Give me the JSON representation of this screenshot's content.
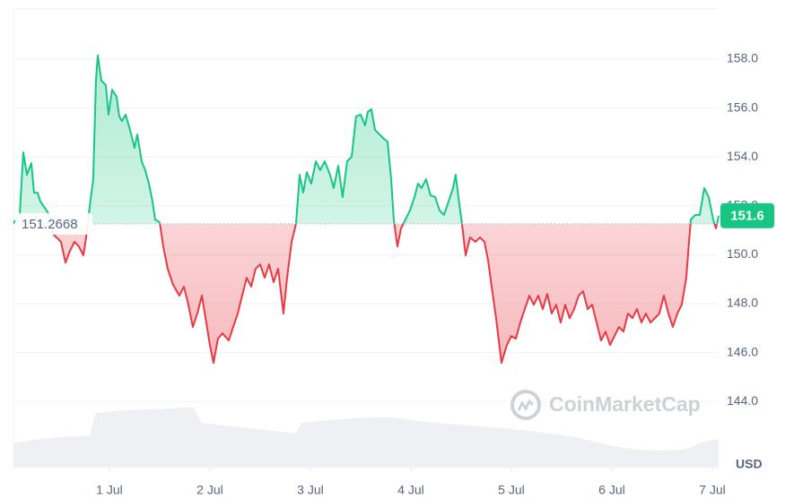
{
  "chart_data": {
    "type": "line",
    "x": [
      0.045,
      0.107,
      0.143,
      0.179,
      0.223,
      0.25,
      0.286,
      0.313,
      0.357,
      0.402,
      0.446,
      0.518,
      0.563,
      0.607,
      0.652,
      0.696,
      0.741,
      0.768,
      0.804,
      0.839,
      0.866,
      0.884,
      0.92,
      0.964,
      0.991,
      1.027,
      1.071,
      1.098,
      1.125,
      1.161,
      1.205,
      1.25,
      1.277,
      1.321,
      1.357,
      1.393,
      1.429,
      1.455,
      1.5,
      1.536,
      1.58,
      1.634,
      1.696,
      1.741,
      1.786,
      1.83,
      1.875,
      1.92,
      1.964,
      2.0,
      2.036,
      2.08,
      2.125,
      2.188,
      2.232,
      2.277,
      2.321,
      2.366,
      2.411,
      2.455,
      2.5,
      2.545,
      2.589,
      2.634,
      2.679,
      2.732,
      2.768,
      2.813,
      2.857,
      2.893,
      2.929,
      2.964,
      3.009,
      3.054,
      3.098,
      3.143,
      3.196,
      3.232,
      3.277,
      3.321,
      3.366,
      3.411,
      3.455,
      3.5,
      3.545,
      3.571,
      3.607,
      3.643,
      3.688,
      3.732,
      3.768,
      3.804,
      3.83,
      3.866,
      3.902,
      3.946,
      3.991,
      4.036,
      4.071,
      4.107,
      4.152,
      4.196,
      4.241,
      4.286,
      4.33,
      4.375,
      4.42,
      4.446,
      4.473,
      4.509,
      4.545,
      4.589,
      4.643,
      4.688,
      4.732,
      4.768,
      4.804,
      4.848,
      4.902,
      4.955,
      5.0,
      5.045,
      5.089,
      5.134,
      5.179,
      5.223,
      5.268,
      5.313,
      5.357,
      5.402,
      5.446,
      5.491,
      5.536,
      5.58,
      5.625,
      5.67,
      5.714,
      5.759,
      5.804,
      5.848,
      5.893,
      5.938,
      5.982,
      6.027,
      6.071,
      6.116,
      6.161,
      6.205,
      6.25,
      6.295,
      6.339,
      6.384,
      6.429,
      6.473,
      6.518,
      6.563,
      6.607,
      6.652,
      6.696,
      6.741,
      6.768,
      6.786,
      6.83,
      6.875,
      6.92,
      6.964,
      7.009,
      7.036,
      7.063
    ],
    "values": [
      151.3,
      151.63,
      154.19,
      153.27,
      153.75,
      152.54,
      152.54,
      152.18,
      151.92,
      151.63,
      150.82,
      150.53,
      149.68,
      150.16,
      150.53,
      150.34,
      149.98,
      150.71,
      151.99,
      153.09,
      157.12,
      158.15,
      157.12,
      156.94,
      155.73,
      156.75,
      156.46,
      155.66,
      155.47,
      155.73,
      155.11,
      154.37,
      154.92,
      153.82,
      153.46,
      152.91,
      152.18,
      151.44,
      151.33,
      150.34,
      149.43,
      148.77,
      148.33,
      148.7,
      147.96,
      147.05,
      147.6,
      148.33,
      147.23,
      146.31,
      145.58,
      146.57,
      146.79,
      146.5,
      147.05,
      147.6,
      148.33,
      149.06,
      148.7,
      149.43,
      149.61,
      149.06,
      149.61,
      148.88,
      149.43,
      147.6,
      149.06,
      150.53,
      151.26,
      153.27,
      152.54,
      153.38,
      152.91,
      153.82,
      153.46,
      153.82,
      153.27,
      152.73,
      153.64,
      152.36,
      153.82,
      154.01,
      155.66,
      155.73,
      155.29,
      155.84,
      155.95,
      155.11,
      154.92,
      154.74,
      154.63,
      153.09,
      151.44,
      150.34,
      151.08,
      151.44,
      151.81,
      152.36,
      152.91,
      152.73,
      153.09,
      152.43,
      152.36,
      151.81,
      151.63,
      152.18,
      152.73,
      153.27,
      152.36,
      151.26,
      149.98,
      150.71,
      150.53,
      150.71,
      150.53,
      149.79,
      148.7,
      147.41,
      145.58,
      146.31,
      146.68,
      146.57,
      147.23,
      147.78,
      148.33,
      147.96,
      148.33,
      147.78,
      148.4,
      147.6,
      147.96,
      147.23,
      147.96,
      147.41,
      147.78,
      148.33,
      148.51,
      147.78,
      147.96,
      147.23,
      146.5,
      146.86,
      146.31,
      146.68,
      147.05,
      146.86,
      147.6,
      147.41,
      147.78,
      147.23,
      147.6,
      147.23,
      147.41,
      147.6,
      148.33,
      147.6,
      147.05,
      147.6,
      147.96,
      149.06,
      150.53,
      151.44,
      151.63,
      151.63,
      152.73,
      152.36,
      151.44,
      151.08,
      151.6
    ],
    "baseline": 151.2668,
    "up_color": "#16c784",
    "down_color": "#ea3943",
    "xlim": [
      0.045,
      7.063
    ],
    "ylim": [
      141.3,
      160.05
    ],
    "xticks": [
      {
        "value": 1,
        "label": "1 Jul"
      },
      {
        "value": 2,
        "label": "2 Jul"
      },
      {
        "value": 3,
        "label": "3 Jul"
      },
      {
        "value": 4,
        "label": "4 Jul"
      },
      {
        "value": 5,
        "label": "5 Jul"
      },
      {
        "value": 6,
        "label": "6 Jul"
      },
      {
        "value": 7,
        "label": "7 Jul"
      }
    ],
    "yticks": [
      {
        "value": 144,
        "label": "144.0"
      },
      {
        "value": 146,
        "label": "146.0"
      },
      {
        "value": 148,
        "label": "148.0"
      },
      {
        "value": 150,
        "label": "150.0"
      },
      {
        "value": 152,
        "label": "152.0"
      },
      {
        "value": 154,
        "label": "154.0"
      },
      {
        "value": 156,
        "label": "156.0"
      },
      {
        "value": 158,
        "label": "158.0"
      }
    ],
    "grid": true,
    "unit": "USD",
    "watermark": "CoinMarketCap"
  }
}
